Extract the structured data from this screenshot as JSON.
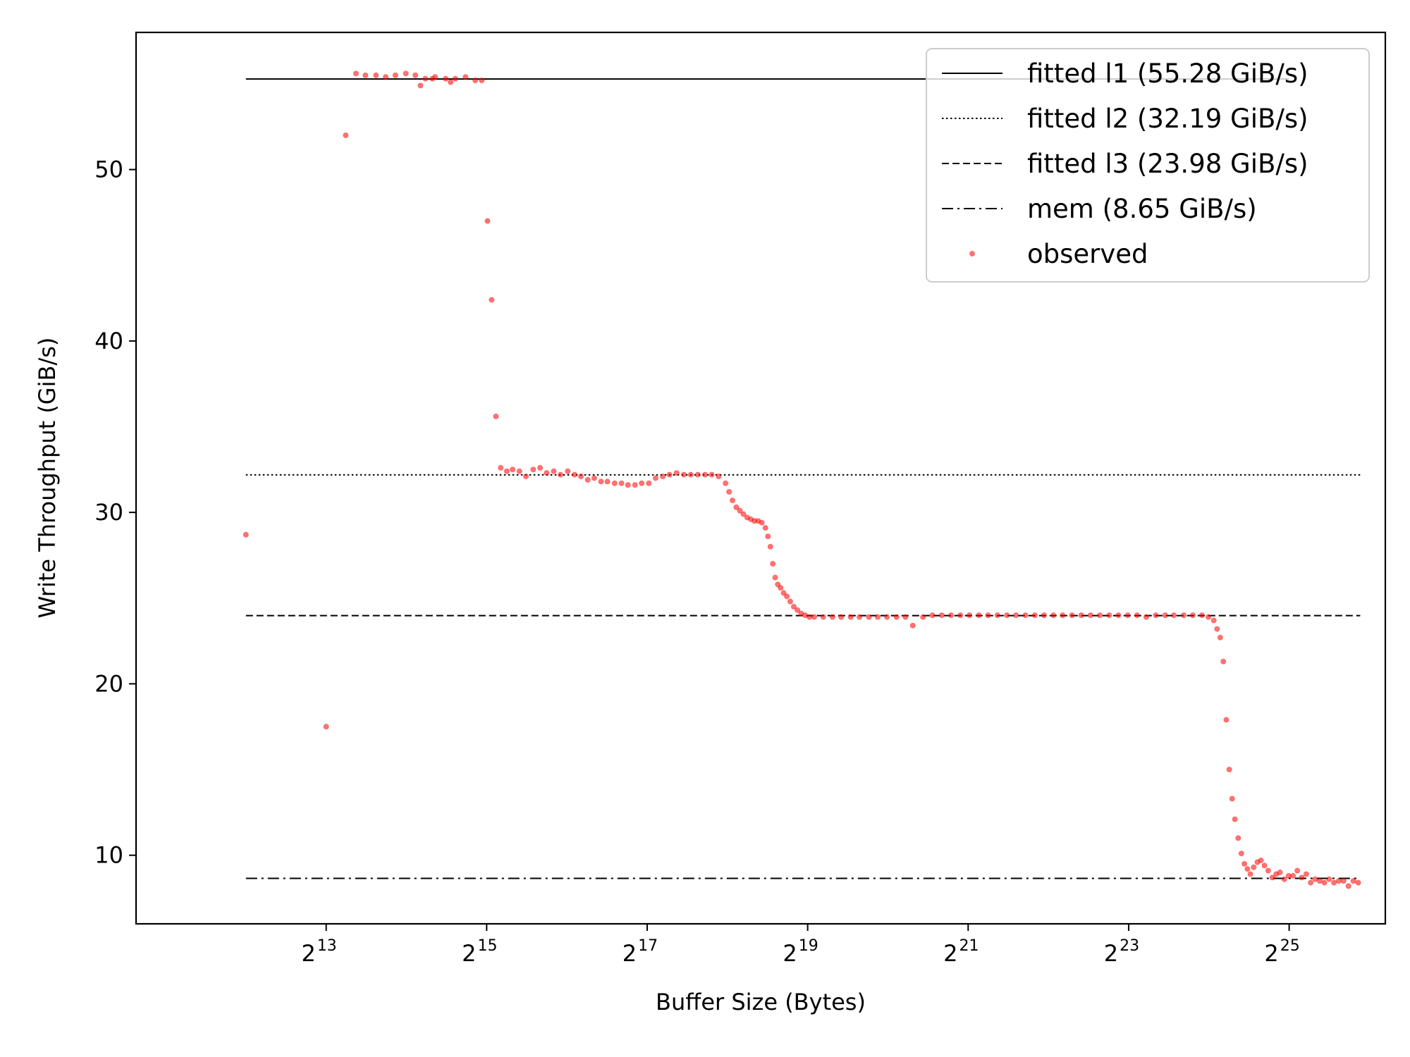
{
  "chart_data": {
    "type": "scatter",
    "title": "",
    "xlabel": "Buffer Size (Bytes)",
    "ylabel": "Write Throughput (GiB/s)",
    "x_scale": "log2",
    "xlim": [
      1586,
      77000000
    ],
    "ylim": [
      6.0,
      58.0
    ],
    "grid": false,
    "legend_position": "top-right",
    "x_ticks": [
      {
        "base": "2",
        "exp": "13",
        "value": 8192
      },
      {
        "base": "2",
        "exp": "15",
        "value": 32768
      },
      {
        "base": "2",
        "exp": "17",
        "value": 131072
      },
      {
        "base": "2",
        "exp": "19",
        "value": 524288
      },
      {
        "base": "2",
        "exp": "21",
        "value": 2097152
      },
      {
        "base": "2",
        "exp": "23",
        "value": 8388608
      },
      {
        "base": "2",
        "exp": "25",
        "value": 33554432
      }
    ],
    "y_ticks": [
      "10",
      "20",
      "30",
      "40",
      "50"
    ],
    "fitted_lines": [
      {
        "name": "fitted l1 (55.28 GiB/s)",
        "value": 55.28,
        "style": "solid",
        "x_range": [
          4096,
          33554432
        ]
      },
      {
        "name": "fitted l2 (32.19 GiB/s)",
        "value": 32.19,
        "style": "dotted",
        "x_range": [
          4096,
          62000000
        ]
      },
      {
        "name": "fitted l3 (23.98 GiB/s)",
        "value": 23.98,
        "style": "dashed",
        "x_range": [
          4096,
          62000000
        ]
      },
      {
        "name": "mem (8.65 GiB/s)",
        "value": 8.65,
        "style": "dashdot",
        "x_range": [
          4096,
          62000000
        ]
      }
    ],
    "observed": {
      "name": "observed",
      "color": "#ff0000",
      "points": [
        [
          4096,
          28.7
        ],
        [
          8192,
          17.5
        ],
        [
          9700,
          52.0
        ],
        [
          10600,
          55.6
        ],
        [
          11500,
          55.5
        ],
        [
          12600,
          55.5
        ],
        [
          13700,
          55.4
        ],
        [
          14900,
          55.5
        ],
        [
          16300,
          55.6
        ],
        [
          17700,
          55.5
        ],
        [
          19300,
          55.3
        ],
        [
          21000,
          55.4
        ],
        [
          23000,
          55.3
        ],
        [
          25000,
          55.3
        ],
        [
          27300,
          55.4
        ],
        [
          29700,
          55.2
        ],
        [
          31400,
          55.2
        ],
        [
          18500,
          54.9
        ],
        [
          20500,
          55.3
        ],
        [
          24000,
          55.1
        ],
        [
          33000,
          47.0
        ],
        [
          34200,
          42.4
        ],
        [
          35500,
          35.6
        ],
        [
          37000,
          32.6
        ],
        [
          39000,
          32.4
        ],
        [
          41000,
          32.5
        ],
        [
          43500,
          32.4
        ],
        [
          46000,
          32.1
        ],
        [
          49000,
          32.5
        ],
        [
          52000,
          32.6
        ],
        [
          55000,
          32.3
        ],
        [
          58500,
          32.4
        ],
        [
          62000,
          32.2
        ],
        [
          66000,
          32.4
        ],
        [
          70000,
          32.2
        ],
        [
          74000,
          32.1
        ],
        [
          78500,
          31.9
        ],
        [
          83000,
          32.0
        ],
        [
          88000,
          31.8
        ],
        [
          93000,
          31.8
        ],
        [
          99000,
          31.7
        ],
        [
          105000,
          31.7
        ],
        [
          111000,
          31.6
        ],
        [
          118000,
          31.6
        ],
        [
          125000,
          31.7
        ],
        [
          133000,
          31.7
        ],
        [
          141000,
          32.0
        ],
        [
          150000,
          32.1
        ],
        [
          159000,
          32.2
        ],
        [
          169000,
          32.3
        ],
        [
          180000,
          32.2
        ],
        [
          191000,
          32.2
        ],
        [
          203000,
          32.2
        ],
        [
          216000,
          32.2
        ],
        [
          229000,
          32.2
        ],
        [
          243000,
          32.1
        ],
        [
          258000,
          31.7
        ],
        [
          266000,
          31.2
        ],
        [
          274000,
          30.7
        ],
        [
          283000,
          30.3
        ],
        [
          292000,
          30.1
        ],
        [
          301000,
          29.9
        ],
        [
          311000,
          29.7
        ],
        [
          321000,
          29.6
        ],
        [
          331000,
          29.5
        ],
        [
          342000,
          29.5
        ],
        [
          353000,
          29.4
        ],
        [
          364000,
          29.1
        ],
        [
          372000,
          28.6
        ],
        [
          380000,
          28.0
        ],
        [
          388000,
          27.0
        ],
        [
          396000,
          26.2
        ],
        [
          405000,
          25.8
        ],
        [
          415000,
          25.6
        ],
        [
          426000,
          25.3
        ],
        [
          438000,
          25.1
        ],
        [
          451000,
          24.8
        ],
        [
          465000,
          24.5
        ],
        [
          480000,
          24.3
        ],
        [
          496000,
          24.1
        ],
        [
          513000,
          24.0
        ],
        [
          532000,
          23.9
        ],
        [
          555000,
          23.9
        ],
        [
          600000,
          23.9
        ],
        [
          650000,
          23.9
        ],
        [
          700000,
          23.9
        ],
        [
          760000,
          23.9
        ],
        [
          820000,
          23.9
        ],
        [
          890000,
          23.9
        ],
        [
          960000,
          23.9
        ],
        [
          1040000,
          23.9
        ],
        [
          1130000,
          23.9
        ],
        [
          1220000,
          23.9
        ],
        [
          1300000,
          23.4
        ],
        [
          1420000,
          23.9
        ],
        [
          1540000,
          24.0
        ],
        [
          1670000,
          24.0
        ],
        [
          1810000,
          24.0
        ],
        [
          1960000,
          24.0
        ],
        [
          2120000,
          24.0
        ],
        [
          2300000,
          24.0
        ],
        [
          2490000,
          24.0
        ],
        [
          2700000,
          24.0
        ],
        [
          2930000,
          24.0
        ],
        [
          3170000,
          24.0
        ],
        [
          3440000,
          24.0
        ],
        [
          3730000,
          24.0
        ],
        [
          4040000,
          24.0
        ],
        [
          4380000,
          24.0
        ],
        [
          4740000,
          24.0
        ],
        [
          5140000,
          24.0
        ],
        [
          5570000,
          24.0
        ],
        [
          6030000,
          24.0
        ],
        [
          6540000,
          24.0
        ],
        [
          7090000,
          24.0
        ],
        [
          7680000,
          24.0
        ],
        [
          8320000,
          24.0
        ],
        [
          9020000,
          24.0
        ],
        [
          9770000,
          23.9
        ],
        [
          10600000,
          24.0
        ],
        [
          11500000,
          24.0
        ],
        [
          12400000,
          24.0
        ],
        [
          13500000,
          24.0
        ],
        [
          14600000,
          24.0
        ],
        [
          15800000,
          24.0
        ],
        [
          16700000,
          23.9
        ],
        [
          17500000,
          23.7
        ],
        [
          18000000,
          23.2
        ],
        [
          18500000,
          22.7
        ],
        [
          19000000,
          21.3
        ],
        [
          19500000,
          17.9
        ],
        [
          20000000,
          15.0
        ],
        [
          20500000,
          13.3
        ],
        [
          21000000,
          12.1
        ],
        [
          21600000,
          11.0
        ],
        [
          22200000,
          10.1
        ],
        [
          22800000,
          9.5
        ],
        [
          23400000,
          9.2
        ],
        [
          24000000,
          8.9
        ],
        [
          24700000,
          9.3
        ],
        [
          25500000,
          9.6
        ],
        [
          26300000,
          9.7
        ],
        [
          27100000,
          9.4
        ],
        [
          28000000,
          9.1
        ],
        [
          29000000,
          8.7
        ],
        [
          30000000,
          8.9
        ],
        [
          31000000,
          9.0
        ],
        [
          32200000,
          8.6
        ],
        [
          33400000,
          8.8
        ],
        [
          34700000,
          8.8
        ],
        [
          36000000,
          9.1
        ],
        [
          37400000,
          8.7
        ],
        [
          38900000,
          8.9
        ],
        [
          40400000,
          8.4
        ],
        [
          42000000,
          8.6
        ],
        [
          43700000,
          8.5
        ],
        [
          45500000,
          8.4
        ],
        [
          47400000,
          8.6
        ],
        [
          49400000,
          8.4
        ],
        [
          51500000,
          8.5
        ],
        [
          53700000,
          8.5
        ],
        [
          56000000,
          8.2
        ],
        [
          58400000,
          8.5
        ],
        [
          60900000,
          8.4
        ]
      ]
    }
  }
}
